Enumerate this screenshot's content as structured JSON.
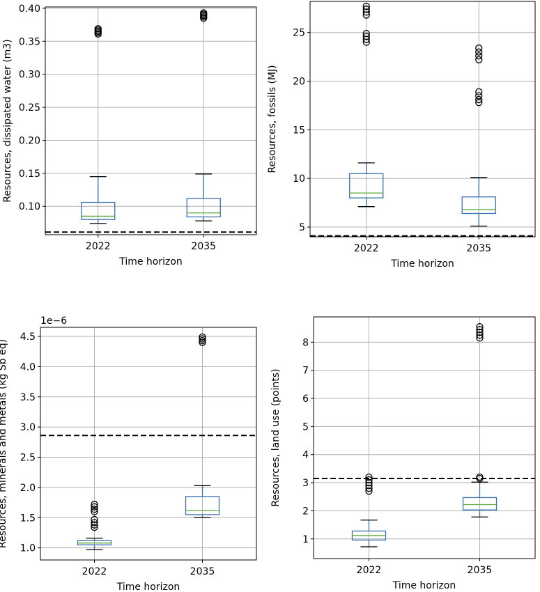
{
  "chart_data": [
    {
      "type": "box",
      "xlabel": "Time horizon",
      "ylabel": "Resources, dissipated water (m3)",
      "categories": [
        "2022",
        "2035"
      ],
      "ylim": [
        0.057,
        0.402
      ],
      "yticks": [
        0.1,
        0.15,
        0.2,
        0.25,
        0.3,
        0.35,
        0.4
      ],
      "ytick_labels": [
        "0.10",
        "0.15",
        "0.20",
        "0.25",
        "0.30",
        "0.35",
        "0.40"
      ],
      "tick_exponent": "",
      "grid": true,
      "reference_line": 0.061,
      "boxes": [
        {
          "whisker_low": 0.074,
          "q1": 0.08,
          "median": 0.085,
          "q3": 0.106,
          "whisker_high": 0.145,
          "outliers": [
            0.361,
            0.363,
            0.365,
            0.367,
            0.369
          ]
        },
        {
          "whisker_low": 0.078,
          "q1": 0.084,
          "median": 0.09,
          "q3": 0.112,
          "whisker_high": 0.149,
          "outliers": [
            0.385,
            0.387,
            0.389,
            0.391,
            0.393
          ]
        }
      ]
    },
    {
      "type": "box",
      "xlabel": "Time horizon",
      "ylabel": "Resources, fossils (MJ)",
      "categories": [
        "2022",
        "2035"
      ],
      "ylim": [
        4.0,
        28.2
      ],
      "yticks": [
        5,
        10,
        15,
        20,
        25
      ],
      "ytick_labels": [
        "5",
        "10",
        "15",
        "20",
        "25"
      ],
      "tick_exponent": "",
      "grid": true,
      "reference_line": 4.1,
      "boxes": [
        {
          "whisker_low": 7.1,
          "q1": 8.0,
          "median": 8.5,
          "q3": 10.5,
          "whisker_high": 11.6,
          "outliers": [
            24.0,
            24.3,
            24.6,
            24.9,
            26.8,
            27.1,
            27.4,
            27.7
          ]
        },
        {
          "whisker_low": 5.1,
          "q1": 6.4,
          "median": 6.8,
          "q3": 8.1,
          "whisker_high": 10.1,
          "outliers": [
            17.8,
            18.1,
            18.5,
            18.9,
            22.2,
            22.6,
            23.0,
            23.4
          ]
        }
      ]
    },
    {
      "type": "box",
      "xlabel": "Time horizon",
      "ylabel": "Resources, minerals and metals (kg Sb eq)",
      "categories": [
        "2022",
        "2035"
      ],
      "ylim": [
        0.8,
        4.65
      ],
      "yticks": [
        1.0,
        1.5,
        2.0,
        2.5,
        3.0,
        3.5,
        4.0,
        4.5
      ],
      "ytick_labels": [
        "1.0",
        "1.5",
        "2.0",
        "2.5",
        "3.0",
        "3.5",
        "4.0",
        "4.5"
      ],
      "tick_exponent": "1e−6",
      "grid": true,
      "reference_line": 2.86,
      "boxes": [
        {
          "whisker_low": 0.97,
          "q1": 1.05,
          "median": 1.08,
          "q3": 1.12,
          "whisker_high": 1.16,
          "outliers": [
            1.34,
            1.38,
            1.42,
            1.47,
            1.6,
            1.64,
            1.68,
            1.72
          ]
        },
        {
          "whisker_low": 1.5,
          "q1": 1.55,
          "median": 1.62,
          "q3": 1.85,
          "whisker_high": 2.03,
          "outliers": [
            4.4,
            4.43,
            4.46,
            4.49
          ]
        }
      ]
    },
    {
      "type": "box",
      "xlabel": "Time horizon",
      "ylabel": "Resources, land use (points)",
      "categories": [
        "2022",
        "2035"
      ],
      "ylim": [
        0.3,
        8.9
      ],
      "yticks": [
        1,
        2,
        3,
        4,
        5,
        6,
        7,
        8
      ],
      "ytick_labels": [
        "1",
        "2",
        "3",
        "4",
        "5",
        "6",
        "7",
        "8"
      ],
      "tick_exponent": "",
      "grid": true,
      "reference_line": 3.15,
      "boxes": [
        {
          "whisker_low": 0.72,
          "q1": 0.96,
          "median": 1.12,
          "q3": 1.28,
          "whisker_high": 1.67,
          "outliers": [
            2.7,
            2.8,
            2.9,
            3.0,
            3.1,
            3.2
          ]
        },
        {
          "whisker_low": 1.78,
          "q1": 2.03,
          "median": 2.22,
          "q3": 2.47,
          "whisker_high": 3.02,
          "outliers": [
            3.15,
            3.2,
            8.15,
            8.25,
            8.35,
            8.45,
            8.55
          ]
        }
      ]
    }
  ],
  "colors": {
    "box": "#3a6fb0",
    "median": "#5ca83a",
    "grid": "#b0b0b0",
    "reference_line": "#000000",
    "outlier_edge": "#000000"
  }
}
